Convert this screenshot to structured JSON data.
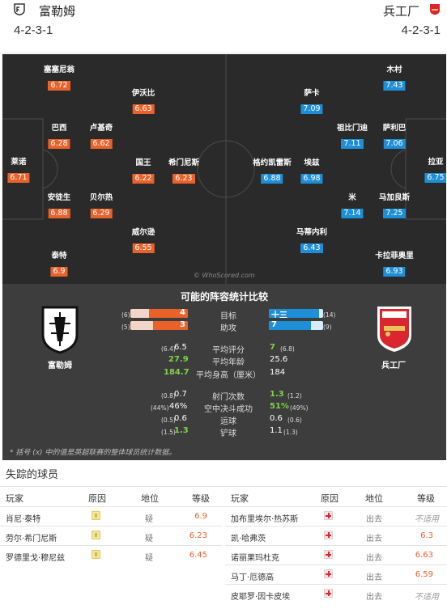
{
  "header": {
    "home_team": "富勒姆",
    "away_team": "兵工厂",
    "home_formation": "4-2-3-1",
    "away_formation": "4-2-3-1"
  },
  "pitch": {
    "watermark": "© WhoScored.com",
    "home_players": [
      {
        "name": "莱诺",
        "rating": "6.71"
      },
      {
        "name": "塞塞尼翁",
        "rating": "6.72"
      },
      {
        "name": "巴西",
        "rating": "6.28"
      },
      {
        "name": "安徒生",
        "rating": "6.88"
      },
      {
        "name": "泰特",
        "rating": "6.9"
      },
      {
        "name": "卢基奇",
        "rating": "6.62"
      },
      {
        "name": "贝尔热",
        "rating": "6.29"
      },
      {
        "name": "伊沃比",
        "rating": "6.63"
      },
      {
        "name": "国王",
        "rating": "6.22"
      },
      {
        "name": "威尔逊",
        "rating": "6.55"
      },
      {
        "name": "希门尼斯",
        "rating": "6.23"
      }
    ],
    "away_players": [
      {
        "name": "拉亚",
        "rating": "6.75"
      },
      {
        "name": "木村",
        "rating": "7.43"
      },
      {
        "name": "萨利巴",
        "rating": "7.06"
      },
      {
        "name": "马加良斯",
        "rating": "7.25"
      },
      {
        "name": "卡拉菲奥里",
        "rating": "6.93"
      },
      {
        "name": "祖比门迪",
        "rating": "7.11"
      },
      {
        "name": "米",
        "rating": "7.14"
      },
      {
        "name": "萨卡",
        "rating": "7.09"
      },
      {
        "name": "埃兹",
        "rating": "6.98"
      },
      {
        "name": "马蒂内利",
        "rating": "6.43"
      },
      {
        "name": "格约凯雷斯",
        "rating": "6.88"
      }
    ]
  },
  "comparison": {
    "title": "可能的阵容统计比较",
    "home_name": "富勒姆",
    "away_name": "兵工厂",
    "bars": [
      {
        "label": "目标",
        "home": "4",
        "home_season": "(6)",
        "away": "十三",
        "away_season": "(14)",
        "home_frac": 0.67,
        "away_frac": 0.93
      },
      {
        "label": "助攻",
        "home": "3",
        "home_season": "(5)",
        "away": "7",
        "away_season": "(9)",
        "home_frac": 0.6,
        "away_frac": 0.78
      }
    ],
    "stats": [
      {
        "label": "平均评分",
        "home": "6.5",
        "home_season": "(6.4)",
        "away": "7",
        "away_season": "(6.8)",
        "hl": "away"
      },
      {
        "label": "平均年龄",
        "home": "27.9",
        "home_season": "",
        "away": "25.6",
        "away_season": "",
        "hl": "home"
      },
      {
        "label": "平均身高（厘米）",
        "home": "184.7",
        "home_season": "",
        "away": "184",
        "away_season": "",
        "hl": "home"
      },
      {
        "label": "射门次数",
        "home": "0.7",
        "home_season": "(0.8)",
        "away": "1.3",
        "away_season": "(1.2)",
        "hl": "away"
      },
      {
        "label": "空中决斗成功",
        "home": "46%",
        "home_season": "(44%)",
        "away": "51%",
        "away_season": "(49%)",
        "hl": "away"
      },
      {
        "label": "运球",
        "home": "0.6",
        "home_season": "(0.5)",
        "away": "0.6",
        "away_season": "(0.6)",
        "hl": "none"
      },
      {
        "label": "铲球",
        "home": "1.3",
        "home_season": "(1.5)",
        "away": "1.1",
        "away_season": "(1.3)",
        "hl": "home"
      }
    ],
    "note": "* 括号 (x) 中的值是英超联赛的整体球员统计数据。"
  },
  "missing": {
    "title": "失踪的球员",
    "headers": {
      "player": "玩家",
      "reason": "原因",
      "status": "地位",
      "rating": "等级"
    },
    "home": [
      {
        "name": "肖尼·泰特",
        "status": "疑",
        "rating": "6.9",
        "icon": "doubtful-icon"
      },
      {
        "name": "劳尔·希门尼斯",
        "status": "疑",
        "rating": "6.23",
        "icon": "doubtful-icon"
      },
      {
        "name": "罗德里戈·穆尼兹",
        "status": "疑",
        "rating": "6.45",
        "icon": "doubtful-icon"
      }
    ],
    "away": [
      {
        "name": "加布里埃尔·热苏斯",
        "status": "出去",
        "rating": "不适用",
        "icon": "injury-icon"
      },
      {
        "name": "凯·哈弗茨",
        "status": "出去",
        "rating": "6.3",
        "icon": "injury-icon"
      },
      {
        "name": "诺丽果玛杜克",
        "status": "出去",
        "rating": "6.63",
        "icon": "injury-icon"
      },
      {
        "name": "马丁·厄德高",
        "status": "出去",
        "rating": "6.59",
        "icon": "injury-icon"
      },
      {
        "name": "皮耶罗·因卡皮埃",
        "status": "出去",
        "rating": "不适用",
        "icon": "injury-icon"
      }
    ]
  },
  "colors": {
    "home": "#e9622a",
    "away": "#1e8fd6",
    "positive": "#7ed348"
  }
}
